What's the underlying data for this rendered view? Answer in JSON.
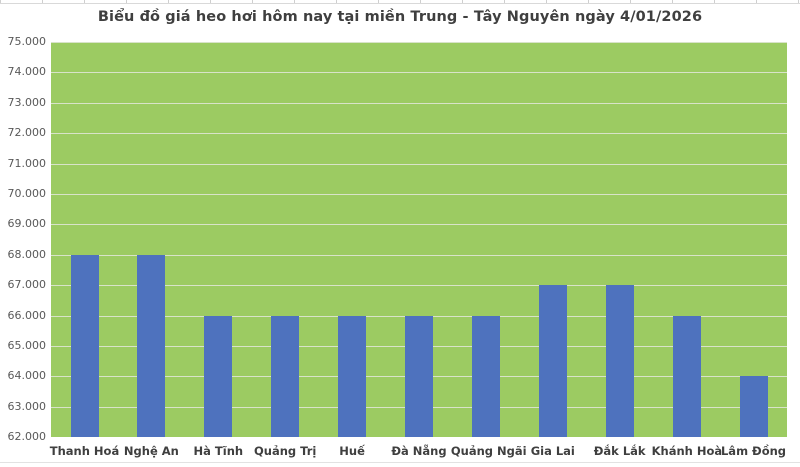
{
  "chart_data": {
    "type": "bar",
    "title": "Biểu đồ giá heo hơi hôm nay tại miền Trung - Tây Nguyên ngày 4/01/2026",
    "categories": [
      "Thanh Hoá",
      "Nghệ An",
      "Hà Tĩnh",
      "Quảng Trị",
      "Huế",
      "Đà Nẵng",
      "Quảng Ngãi",
      "Gia Lai",
      "Đắk Lắk",
      "Khánh Hoà",
      "Lâm Đồng"
    ],
    "values": [
      68000,
      68000,
      66000,
      66000,
      66000,
      66000,
      66000,
      67000,
      67000,
      66000,
      64000
    ],
    "xlabel": "",
    "ylabel": "",
    "ylim": [
      62000,
      75000
    ],
    "ytick_step": 1000,
    "ytick_labels": [
      "62.000",
      "63.000",
      "64.000",
      "65.000",
      "66.000",
      "67.000",
      "68.000",
      "69.000",
      "70.000",
      "71.000",
      "72.000",
      "73.000",
      "74.000",
      "75.000"
    ],
    "grid": true,
    "legend": "none",
    "colors": {
      "bar": "#4e72be",
      "plot_background": "#9ccb62",
      "gridline": "#ebebeb",
      "title_text": "#3f3f3f",
      "ytick_text": "#595959",
      "xtick_text": "#3f3f3f"
    }
  }
}
